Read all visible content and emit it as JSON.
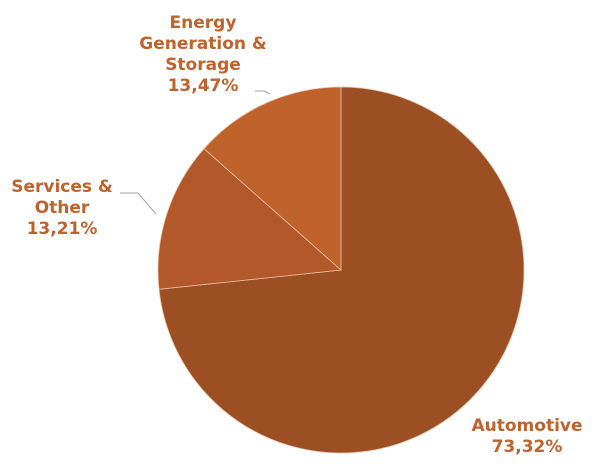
{
  "chart_data": {
    "type": "pie",
    "title": "",
    "slices": [
      {
        "label_lines": [
          "Automotive"
        ],
        "value_label": "73,32%",
        "value": 73.32,
        "color": "#9c4f23"
      },
      {
        "label_lines": [
          "Services &",
          "Other"
        ],
        "value_label": "13,21%",
        "value": 13.21,
        "color": "#b3582a"
      },
      {
        "label_lines": [
          "Energy",
          "Generation &",
          "Storage"
        ],
        "value_label": "13,47%",
        "value": 13.47,
        "color": "#c0622c"
      }
    ],
    "label_color": "#c0622c",
    "leader_color": "#a6a6a6",
    "slice_border_color": "#e8c4ab",
    "legend": "none"
  }
}
